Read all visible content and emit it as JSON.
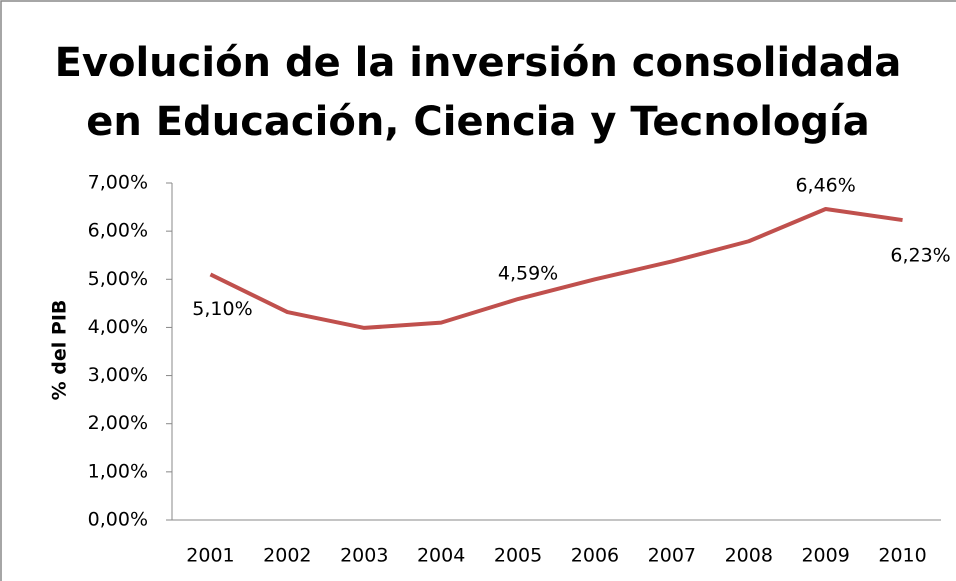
{
  "chart_data": {
    "type": "line",
    "title": [
      "Evolución de la inversión consolidada",
      "en Educación, Ciencia y Tecnología"
    ],
    "ylabel": "% del PIB",
    "categories": [
      "2001",
      "2002",
      "2003",
      "2004",
      "2005",
      "2006",
      "2007",
      "2008",
      "2009",
      "2010"
    ],
    "series": [
      {
        "name": "% del PIB",
        "color": "#c0504d",
        "values": [
          5.1,
          4.32,
          3.99,
          4.1,
          4.59,
          5.0,
          5.37,
          5.79,
          6.46,
          6.23
        ],
        "value_labels": [
          "5,10%",
          null,
          null,
          null,
          "4,59%",
          null,
          null,
          null,
          "6,46%",
          "6,23%"
        ]
      }
    ],
    "ylim": [
      0,
      7
    ],
    "yticks": [
      {
        "value": 0,
        "label": "0,00%"
      },
      {
        "value": 1,
        "label": "1,00%"
      },
      {
        "value": 2,
        "label": "2,00%"
      },
      {
        "value": 3,
        "label": "3,00%"
      },
      {
        "value": 4,
        "label": "4,00%"
      },
      {
        "value": 5,
        "label": "5,00%"
      },
      {
        "value": 6,
        "label": "6,00%"
      },
      {
        "value": 7,
        "label": "7,00%"
      }
    ],
    "grid": false
  }
}
